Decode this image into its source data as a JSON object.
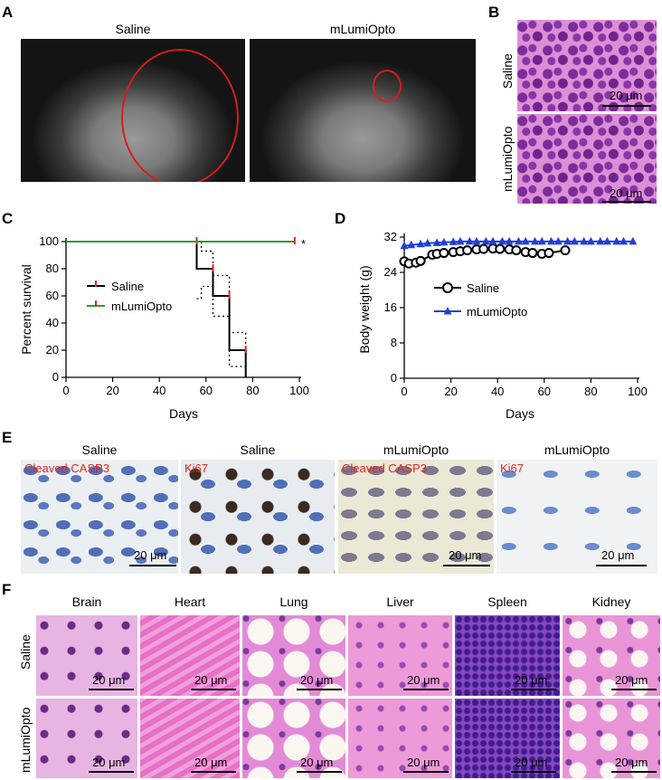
{
  "panels": {
    "A": {
      "label": "A",
      "titles": [
        "Saline",
        "mLumiOpto"
      ]
    },
    "B": {
      "label": "B",
      "rows": [
        "Saline",
        "mLumiOpto"
      ],
      "scalebar": "20 μm"
    },
    "C": {
      "label": "C"
    },
    "D": {
      "label": "D"
    },
    "E": {
      "label": "E",
      "titles": [
        "Saline",
        "Saline",
        "mLumiOpto",
        "mLumiOpto"
      ],
      "stains": [
        "Cleaved CASP3",
        "Ki67",
        "Cleaved CASP3",
        "Ki67"
      ],
      "scalebar": "20 μm"
    },
    "F": {
      "label": "F",
      "organs": [
        "Brain",
        "Heart",
        "Lung",
        "Liver",
        "Spleen",
        "Kidney"
      ],
      "rows": [
        "Saline",
        "mLumiOpto"
      ],
      "scalebar": "20 μm"
    }
  },
  "chart_data": [
    {
      "panel": "C",
      "type": "line",
      "step": true,
      "xlabel": "Days",
      "ylabel": "Percent survival",
      "xlim": [
        0,
        100
      ],
      "ylim": [
        0,
        100
      ],
      "xticks": [
        0,
        20,
        40,
        60,
        80,
        100
      ],
      "yticks": [
        0,
        20,
        40,
        60,
        80,
        100
      ],
      "legend_position": "middle-left",
      "annotation": "*",
      "series": [
        {
          "name": "Saline",
          "color": "#000000",
          "x": [
            0,
            56,
            56,
            63,
            63,
            70,
            70,
            77,
            77
          ],
          "y": [
            100,
            100,
            80,
            80,
            60,
            60,
            20,
            20,
            0
          ],
          "censor_marks_x": [
            56,
            63,
            70,
            77
          ]
        },
        {
          "name": "mLumiOpto",
          "color": "#2aa02a",
          "x": [
            0,
            98
          ],
          "y": [
            100,
            100
          ],
          "censor_marks_x": [
            98
          ]
        }
      ],
      "confidence_band": {
        "upper_x": [
          56,
          58,
          58,
          63,
          63,
          70,
          70,
          77,
          77
        ],
        "upper_y": [
          100,
          100,
          93,
          93,
          75,
          75,
          33,
          33,
          0
        ],
        "lower_x": [
          56,
          58,
          58,
          63,
          63,
          70,
          70,
          77
        ],
        "lower_y": [
          58,
          58,
          67,
          67,
          45,
          45,
          8,
          8
        ]
      }
    },
    {
      "panel": "D",
      "type": "line",
      "xlabel": "Days",
      "ylabel": "Body weight (g)",
      "xlim": [
        0,
        100
      ],
      "ylim": [
        0,
        32
      ],
      "xticks": [
        0,
        20,
        40,
        60,
        80,
        100
      ],
      "yticks": [
        0,
        8,
        16,
        24,
        32
      ],
      "legend_position": "middle-right",
      "series": [
        {
          "name": "Saline",
          "color": "#000000",
          "marker": "circle",
          "x": [
            0,
            2,
            5,
            7,
            12,
            14,
            17,
            21,
            24,
            27,
            31,
            34,
            38,
            41,
            45,
            48,
            52,
            55,
            59,
            62,
            69
          ],
          "y": [
            26.5,
            26.0,
            26.2,
            26.6,
            28.0,
            28.2,
            28.4,
            28.6,
            28.8,
            29.0,
            29.2,
            29.3,
            29.4,
            29.3,
            29.2,
            29.0,
            28.6,
            28.4,
            28.2,
            28.4,
            29.0
          ]
        },
        {
          "name": "mLumiOpto",
          "color": "#1f3fd8",
          "marker": "triangle",
          "x": [
            0,
            3,
            7,
            10,
            14,
            17,
            21,
            24,
            28,
            31,
            35,
            38,
            42,
            45,
            49,
            52,
            56,
            59,
            63,
            66,
            70,
            73,
            77,
            80,
            84,
            87,
            91,
            94,
            98
          ],
          "y": [
            30.0,
            30.2,
            30.4,
            30.6,
            30.7,
            30.8,
            30.9,
            31.0,
            31.0,
            31.0,
            31.0,
            31.0,
            31.0,
            31.0,
            31.0,
            31.0,
            31.0,
            31.0,
            31.0,
            31.0,
            31.0,
            31.0,
            31.0,
            31.0,
            31.0,
            31.0,
            31.0,
            31.0,
            31.0
          ]
        }
      ]
    }
  ]
}
